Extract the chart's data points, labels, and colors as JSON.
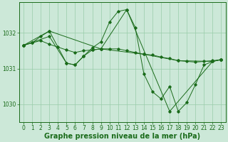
{
  "background_color": "#cce8d8",
  "line_color": "#1a6b1a",
  "marker_color": "#1a6b1a",
  "grid_color": "#99ccaa",
  "xlabel": "Graphe pression niveau de la mer (hPa)",
  "xlabel_fontsize": 7,
  "xlim": [
    -0.5,
    23.5
  ],
  "ylim": [
    1029.5,
    1032.85
  ],
  "yticks": [
    1030,
    1031,
    1032
  ],
  "xticks": [
    0,
    1,
    2,
    3,
    4,
    5,
    6,
    7,
    8,
    9,
    10,
    11,
    12,
    13,
    14,
    15,
    16,
    17,
    18,
    19,
    20,
    21,
    22,
    23
  ],
  "series": [
    {
      "x": [
        0,
        1,
        2,
        3,
        4,
        5,
        6,
        7,
        8,
        9,
        10,
        11,
        12,
        13,
        14,
        15,
        16,
        17,
        18,
        19,
        20,
        21,
        22,
        23
      ],
      "y": [
        1031.65,
        1031.72,
        1031.78,
        1031.68,
        1031.6,
        1031.52,
        1031.45,
        1031.5,
        1031.52,
        1031.55,
        1031.55,
        1031.55,
        1031.5,
        1031.45,
        1031.4,
        1031.38,
        1031.32,
        1031.28,
        1031.22,
        1031.2,
        1031.18,
        1031.2,
        1031.22,
        1031.25
      ]
    },
    {
      "x": [
        0,
        1,
        2,
        3,
        5,
        6,
        7,
        8,
        9,
        10,
        11,
        12,
        13,
        14,
        15,
        16,
        17,
        18,
        19,
        20,
        21,
        22,
        23
      ],
      "y": [
        1031.65,
        1031.72,
        1031.9,
        1032.05,
        1031.15,
        1031.1,
        1031.35,
        1031.58,
        1031.75,
        1032.3,
        1032.6,
        1032.65,
        1032.15,
        1030.85,
        1030.35,
        1030.15,
        1030.5,
        1029.8,
        1030.05,
        1030.55,
        1031.1,
        1031.2,
        1031.25
      ]
    },
    {
      "x": [
        0,
        3,
        9,
        12,
        17,
        22,
        23
      ],
      "y": [
        1031.65,
        1032.05,
        1031.55,
        1032.65,
        1029.8,
        1031.2,
        1031.25
      ]
    },
    {
      "x": [
        0,
        3,
        5,
        6,
        7,
        8,
        9,
        14,
        18,
        22,
        23
      ],
      "y": [
        1031.65,
        1031.9,
        1031.15,
        1031.1,
        1031.35,
        1031.52,
        1031.55,
        1031.4,
        1031.22,
        1031.2,
        1031.25
      ]
    }
  ]
}
